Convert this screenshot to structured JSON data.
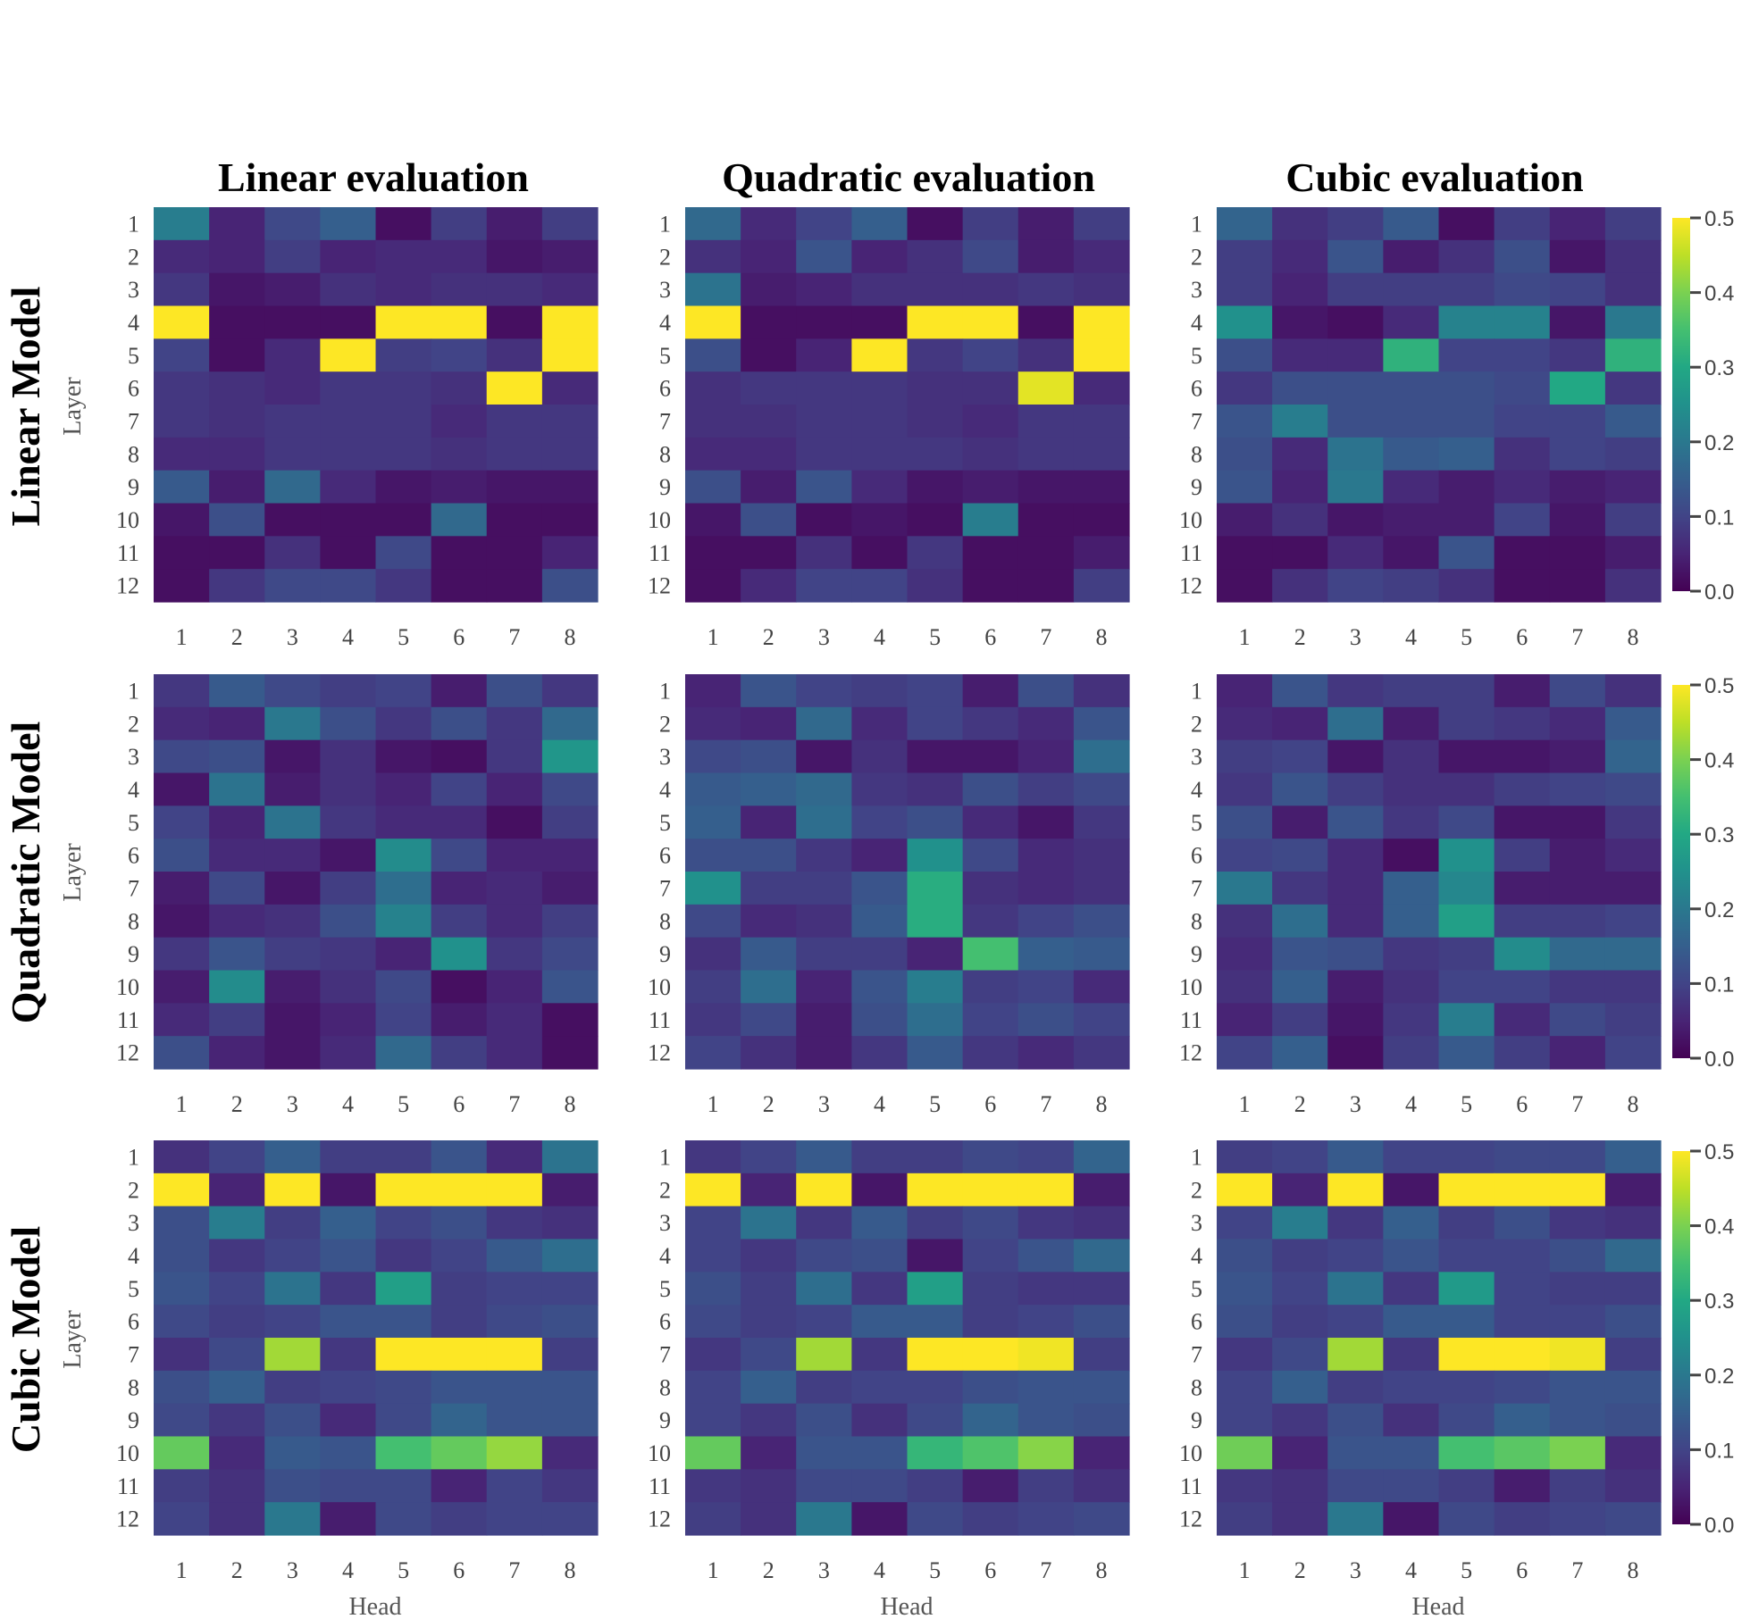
{
  "chart_data": {
    "type": "heatmap",
    "colormap": "viridis",
    "col_titles": [
      "Linear evaluation",
      "Quadratic evaluation",
      "Cubic evaluation"
    ],
    "row_titles": [
      "Linear Model",
      "Quadratic Model",
      "Cubic Model"
    ],
    "ylabel": "Layer",
    "xlabel": "Head",
    "x_ticks": [
      "1",
      "2",
      "3",
      "4",
      "5",
      "6",
      "7",
      "8"
    ],
    "y_ticks": [
      "1",
      "2",
      "3",
      "4",
      "5",
      "6",
      "7",
      "8",
      "9",
      "10",
      "11",
      "12"
    ],
    "vmin": 0,
    "vmax": 0.5,
    "colorbar_ticks": [
      "0.5",
      "0.4",
      "0.3",
      "0.2",
      "0.1",
      "0.0"
    ],
    "matrices": [
      [
        [
          [
            0.21,
            0.05,
            0.11,
            0.15,
            0.02,
            0.09,
            0.04,
            0.09
          ],
          [
            0.06,
            0.05,
            0.09,
            0.05,
            0.06,
            0.06,
            0.03,
            0.04
          ],
          [
            0.08,
            0.03,
            0.04,
            0.07,
            0.06,
            0.07,
            0.07,
            0.06
          ],
          [
            0.5,
            0.02,
            0.02,
            0.02,
            0.5,
            0.5,
            0.02,
            0.5
          ],
          [
            0.1,
            0.02,
            0.06,
            0.5,
            0.09,
            0.1,
            0.07,
            0.5
          ],
          [
            0.08,
            0.07,
            0.06,
            0.08,
            0.08,
            0.07,
            0.5,
            0.06
          ],
          [
            0.08,
            0.07,
            0.08,
            0.08,
            0.08,
            0.06,
            0.08,
            0.08
          ],
          [
            0.06,
            0.06,
            0.08,
            0.08,
            0.08,
            0.07,
            0.08,
            0.08
          ],
          [
            0.14,
            0.04,
            0.17,
            0.06,
            0.03,
            0.04,
            0.03,
            0.03
          ],
          [
            0.03,
            0.12,
            0.02,
            0.02,
            0.02,
            0.17,
            0.02,
            0.02
          ],
          [
            0.02,
            0.02,
            0.07,
            0.02,
            0.11,
            0.02,
            0.02,
            0.05
          ],
          [
            0.02,
            0.08,
            0.11,
            0.11,
            0.08,
            0.02,
            0.02,
            0.12
          ]
        ],
        [
          [
            0.17,
            0.06,
            0.1,
            0.15,
            0.02,
            0.09,
            0.04,
            0.09
          ],
          [
            0.07,
            0.05,
            0.13,
            0.05,
            0.07,
            0.11,
            0.04,
            0.06
          ],
          [
            0.19,
            0.04,
            0.05,
            0.07,
            0.07,
            0.07,
            0.08,
            0.07
          ],
          [
            0.5,
            0.02,
            0.02,
            0.02,
            0.5,
            0.5,
            0.02,
            0.5
          ],
          [
            0.12,
            0.02,
            0.05,
            0.5,
            0.08,
            0.1,
            0.07,
            0.5
          ],
          [
            0.07,
            0.08,
            0.08,
            0.08,
            0.07,
            0.07,
            0.48,
            0.06
          ],
          [
            0.07,
            0.07,
            0.08,
            0.08,
            0.07,
            0.06,
            0.08,
            0.08
          ],
          [
            0.06,
            0.06,
            0.08,
            0.08,
            0.08,
            0.07,
            0.08,
            0.08
          ],
          [
            0.12,
            0.04,
            0.13,
            0.06,
            0.03,
            0.04,
            0.03,
            0.03
          ],
          [
            0.03,
            0.12,
            0.02,
            0.03,
            0.02,
            0.21,
            0.02,
            0.02
          ],
          [
            0.02,
            0.02,
            0.07,
            0.02,
            0.08,
            0.02,
            0.02,
            0.04
          ],
          [
            0.02,
            0.06,
            0.1,
            0.1,
            0.07,
            0.02,
            0.02,
            0.09
          ]
        ],
        [
          [
            0.16,
            0.07,
            0.09,
            0.14,
            0.02,
            0.09,
            0.05,
            0.09
          ],
          [
            0.09,
            0.06,
            0.13,
            0.04,
            0.07,
            0.12,
            0.03,
            0.07
          ],
          [
            0.09,
            0.05,
            0.09,
            0.09,
            0.09,
            0.11,
            0.1,
            0.07
          ],
          [
            0.25,
            0.03,
            0.02,
            0.06,
            0.22,
            0.22,
            0.03,
            0.2
          ],
          [
            0.12,
            0.06,
            0.06,
            0.32,
            0.1,
            0.1,
            0.08,
            0.32
          ],
          [
            0.08,
            0.12,
            0.12,
            0.12,
            0.12,
            0.11,
            0.3,
            0.08
          ],
          [
            0.13,
            0.21,
            0.12,
            0.12,
            0.12,
            0.1,
            0.1,
            0.14
          ],
          [
            0.12,
            0.06,
            0.19,
            0.14,
            0.15,
            0.07,
            0.1,
            0.09
          ],
          [
            0.13,
            0.05,
            0.2,
            0.06,
            0.04,
            0.06,
            0.04,
            0.05
          ],
          [
            0.04,
            0.07,
            0.03,
            0.04,
            0.04,
            0.1,
            0.03,
            0.09
          ],
          [
            0.02,
            0.02,
            0.06,
            0.03,
            0.13,
            0.02,
            0.02,
            0.04
          ],
          [
            0.02,
            0.07,
            0.1,
            0.09,
            0.07,
            0.02,
            0.02,
            0.07
          ]
        ]
      ],
      [
        [
          [
            0.08,
            0.14,
            0.11,
            0.09,
            0.1,
            0.04,
            0.12,
            0.08
          ],
          [
            0.06,
            0.05,
            0.2,
            0.12,
            0.08,
            0.12,
            0.08,
            0.17
          ],
          [
            0.11,
            0.12,
            0.03,
            0.07,
            0.03,
            0.02,
            0.08,
            0.26
          ],
          [
            0.03,
            0.19,
            0.04,
            0.07,
            0.05,
            0.1,
            0.05,
            0.11
          ],
          [
            0.1,
            0.05,
            0.19,
            0.08,
            0.06,
            0.06,
            0.02,
            0.09
          ],
          [
            0.12,
            0.06,
            0.06,
            0.03,
            0.24,
            0.11,
            0.05,
            0.05
          ],
          [
            0.04,
            0.11,
            0.03,
            0.09,
            0.18,
            0.05,
            0.06,
            0.04
          ],
          [
            0.03,
            0.06,
            0.07,
            0.12,
            0.22,
            0.09,
            0.06,
            0.09
          ],
          [
            0.08,
            0.13,
            0.09,
            0.08,
            0.05,
            0.25,
            0.08,
            0.11
          ],
          [
            0.04,
            0.24,
            0.04,
            0.07,
            0.11,
            0.02,
            0.05,
            0.13
          ],
          [
            0.06,
            0.09,
            0.03,
            0.05,
            0.1,
            0.04,
            0.06,
            0.02
          ],
          [
            0.12,
            0.05,
            0.03,
            0.06,
            0.17,
            0.09,
            0.06,
            0.02
          ]
        ],
        [
          [
            0.05,
            0.13,
            0.1,
            0.09,
            0.1,
            0.04,
            0.12,
            0.07
          ],
          [
            0.06,
            0.05,
            0.17,
            0.06,
            0.1,
            0.08,
            0.06,
            0.13
          ],
          [
            0.11,
            0.12,
            0.03,
            0.07,
            0.03,
            0.03,
            0.05,
            0.18
          ],
          [
            0.14,
            0.15,
            0.17,
            0.08,
            0.07,
            0.12,
            0.09,
            0.11
          ],
          [
            0.15,
            0.05,
            0.18,
            0.1,
            0.12,
            0.06,
            0.03,
            0.08
          ],
          [
            0.12,
            0.12,
            0.08,
            0.05,
            0.25,
            0.11,
            0.06,
            0.07
          ],
          [
            0.25,
            0.09,
            0.09,
            0.13,
            0.31,
            0.07,
            0.06,
            0.07
          ],
          [
            0.11,
            0.06,
            0.07,
            0.14,
            0.31,
            0.08,
            0.1,
            0.12
          ],
          [
            0.07,
            0.14,
            0.09,
            0.09,
            0.05,
            0.35,
            0.15,
            0.14
          ],
          [
            0.09,
            0.18,
            0.05,
            0.13,
            0.21,
            0.09,
            0.1,
            0.06
          ],
          [
            0.08,
            0.11,
            0.04,
            0.12,
            0.18,
            0.1,
            0.12,
            0.1
          ],
          [
            0.1,
            0.07,
            0.04,
            0.08,
            0.14,
            0.08,
            0.06,
            0.08
          ]
        ],
        [
          [
            0.05,
            0.13,
            0.08,
            0.09,
            0.09,
            0.04,
            0.11,
            0.07
          ],
          [
            0.06,
            0.05,
            0.18,
            0.04,
            0.09,
            0.08,
            0.06,
            0.14
          ],
          [
            0.09,
            0.1,
            0.03,
            0.07,
            0.03,
            0.03,
            0.04,
            0.16
          ],
          [
            0.08,
            0.13,
            0.09,
            0.07,
            0.07,
            0.09,
            0.1,
            0.11
          ],
          [
            0.12,
            0.04,
            0.13,
            0.08,
            0.11,
            0.03,
            0.03,
            0.08
          ],
          [
            0.1,
            0.11,
            0.06,
            0.02,
            0.25,
            0.09,
            0.04,
            0.06
          ],
          [
            0.2,
            0.08,
            0.06,
            0.15,
            0.23,
            0.04,
            0.04,
            0.04
          ],
          [
            0.07,
            0.18,
            0.06,
            0.15,
            0.28,
            0.09,
            0.09,
            0.1
          ],
          [
            0.06,
            0.13,
            0.12,
            0.08,
            0.09,
            0.24,
            0.17,
            0.17
          ],
          [
            0.07,
            0.15,
            0.04,
            0.07,
            0.1,
            0.1,
            0.08,
            0.08
          ],
          [
            0.05,
            0.09,
            0.03,
            0.08,
            0.21,
            0.06,
            0.11,
            0.09
          ],
          [
            0.1,
            0.15,
            0.02,
            0.09,
            0.14,
            0.09,
            0.05,
            0.1
          ]
        ]
      ],
      [
        [
          [
            0.07,
            0.1,
            0.15,
            0.09,
            0.09,
            0.13,
            0.06,
            0.19
          ],
          [
            0.5,
            0.05,
            0.5,
            0.03,
            0.5,
            0.5,
            0.5,
            0.04
          ],
          [
            0.12,
            0.21,
            0.09,
            0.15,
            0.1,
            0.12,
            0.08,
            0.07
          ],
          [
            0.12,
            0.08,
            0.1,
            0.13,
            0.08,
            0.1,
            0.14,
            0.18
          ],
          [
            0.13,
            0.1,
            0.19,
            0.08,
            0.28,
            0.09,
            0.1,
            0.1
          ],
          [
            0.11,
            0.09,
            0.1,
            0.13,
            0.13,
            0.09,
            0.11,
            0.12
          ],
          [
            0.07,
            0.11,
            0.43,
            0.08,
            0.5,
            0.5,
            0.5,
            0.09
          ],
          [
            0.12,
            0.15,
            0.09,
            0.1,
            0.11,
            0.13,
            0.13,
            0.13
          ],
          [
            0.11,
            0.08,
            0.12,
            0.06,
            0.11,
            0.16,
            0.13,
            0.13
          ],
          [
            0.38,
            0.06,
            0.14,
            0.13,
            0.35,
            0.38,
            0.42,
            0.06
          ],
          [
            0.09,
            0.07,
            0.12,
            0.11,
            0.11,
            0.05,
            0.1,
            0.08
          ],
          [
            0.1,
            0.07,
            0.2,
            0.04,
            0.11,
            0.09,
            0.1,
            0.1
          ]
        ],
        [
          [
            0.08,
            0.1,
            0.14,
            0.09,
            0.09,
            0.11,
            0.1,
            0.16
          ],
          [
            0.5,
            0.05,
            0.5,
            0.03,
            0.5,
            0.5,
            0.5,
            0.04
          ],
          [
            0.1,
            0.19,
            0.08,
            0.14,
            0.09,
            0.11,
            0.08,
            0.07
          ],
          [
            0.1,
            0.08,
            0.11,
            0.12,
            0.03,
            0.1,
            0.13,
            0.17
          ],
          [
            0.12,
            0.09,
            0.18,
            0.08,
            0.28,
            0.09,
            0.08,
            0.08
          ],
          [
            0.11,
            0.09,
            0.1,
            0.14,
            0.14,
            0.09,
            0.1,
            0.12
          ],
          [
            0.08,
            0.11,
            0.43,
            0.08,
            0.5,
            0.5,
            0.49,
            0.09
          ],
          [
            0.1,
            0.15,
            0.09,
            0.1,
            0.1,
            0.12,
            0.13,
            0.13
          ],
          [
            0.1,
            0.08,
            0.12,
            0.07,
            0.11,
            0.16,
            0.13,
            0.12
          ],
          [
            0.38,
            0.05,
            0.13,
            0.13,
            0.33,
            0.36,
            0.41,
            0.05
          ],
          [
            0.08,
            0.07,
            0.11,
            0.11,
            0.09,
            0.04,
            0.09,
            0.07
          ],
          [
            0.09,
            0.07,
            0.2,
            0.03,
            0.11,
            0.09,
            0.1,
            0.11
          ]
        ],
        [
          [
            0.09,
            0.1,
            0.14,
            0.1,
            0.1,
            0.11,
            0.11,
            0.15
          ],
          [
            0.5,
            0.05,
            0.5,
            0.03,
            0.5,
            0.5,
            0.5,
            0.04
          ],
          [
            0.1,
            0.21,
            0.08,
            0.15,
            0.09,
            0.12,
            0.08,
            0.07
          ],
          [
            0.12,
            0.09,
            0.1,
            0.13,
            0.1,
            0.1,
            0.12,
            0.17
          ],
          [
            0.13,
            0.1,
            0.19,
            0.08,
            0.27,
            0.1,
            0.09,
            0.09
          ],
          [
            0.12,
            0.09,
            0.1,
            0.14,
            0.14,
            0.1,
            0.1,
            0.12
          ],
          [
            0.08,
            0.11,
            0.43,
            0.08,
            0.5,
            0.5,
            0.49,
            0.09
          ],
          [
            0.1,
            0.15,
            0.09,
            0.1,
            0.1,
            0.11,
            0.13,
            0.13
          ],
          [
            0.1,
            0.08,
            0.12,
            0.07,
            0.11,
            0.15,
            0.13,
            0.12
          ],
          [
            0.39,
            0.05,
            0.13,
            0.13,
            0.35,
            0.37,
            0.4,
            0.06
          ],
          [
            0.08,
            0.07,
            0.11,
            0.11,
            0.09,
            0.04,
            0.09,
            0.07
          ],
          [
            0.09,
            0.07,
            0.2,
            0.03,
            0.11,
            0.09,
            0.1,
            0.11
          ]
        ]
      ]
    ]
  }
}
